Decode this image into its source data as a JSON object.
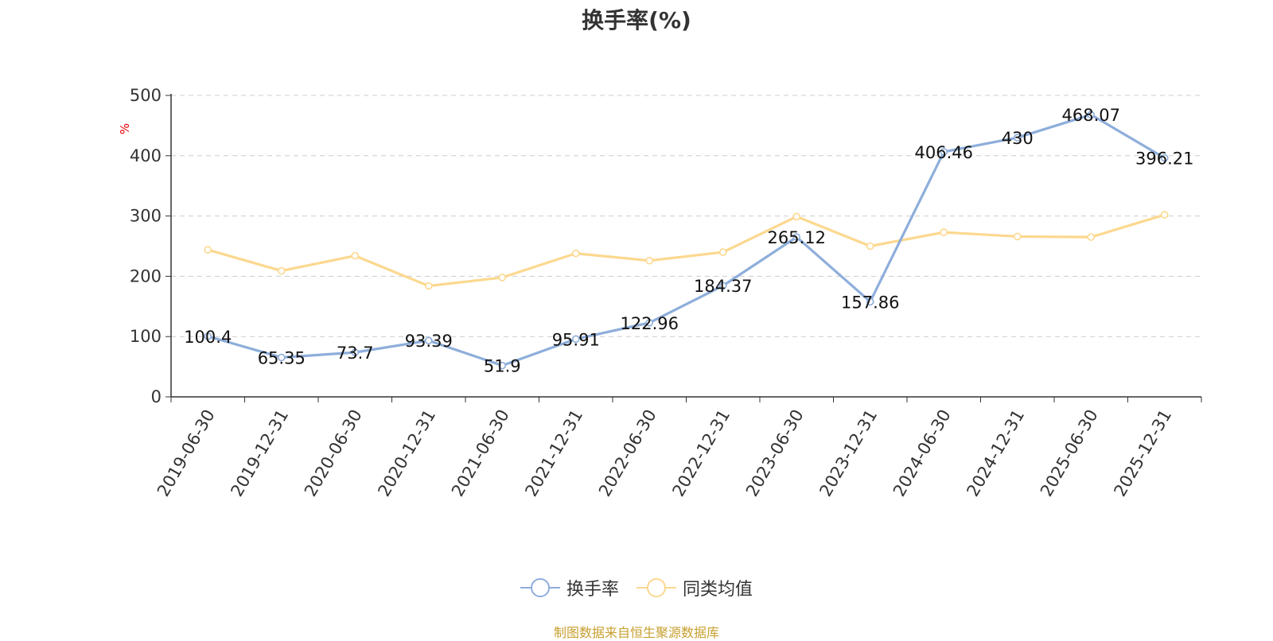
{
  "chart_data": {
    "type": "line",
    "title": "换手率(%)",
    "ylabel": "%",
    "xlabel": "",
    "ylim": [
      0,
      500
    ],
    "yticks": [
      0,
      100,
      200,
      300,
      400,
      500
    ],
    "categories": [
      "2019-06-30",
      "2019-12-31",
      "2020-06-30",
      "2020-12-31",
      "2021-06-30",
      "2021-12-31",
      "2022-06-30",
      "2022-12-31",
      "2023-06-30",
      "2023-12-31",
      "2024-06-30",
      "2024-12-31",
      "2025-06-30",
      "2025-12-31"
    ],
    "series": [
      {
        "name": "换手率",
        "color": "#8eaedb",
        "show_labels": true,
        "values": [
          100.4,
          65.35,
          73.7,
          93.39,
          51.9,
          95.91,
          122.96,
          184.37,
          265.12,
          157.86,
          406.46,
          430,
          468.07,
          396.21
        ]
      },
      {
        "name": "同类均值",
        "color": "#fcd88f",
        "show_labels": false,
        "values": [
          244,
          209,
          234,
          184,
          198,
          238,
          226,
          240,
          299,
          250,
          273,
          266,
          265,
          302
        ]
      }
    ],
    "grid": true,
    "legend_position": "bottom-center"
  },
  "source_note": "制图数据来自恒生聚源数据库",
  "colors": {
    "title": "#333333",
    "unit_label": "#e60000",
    "source_note": "#c8a030",
    "grid": "#cccccc",
    "axis": "#333333"
  }
}
